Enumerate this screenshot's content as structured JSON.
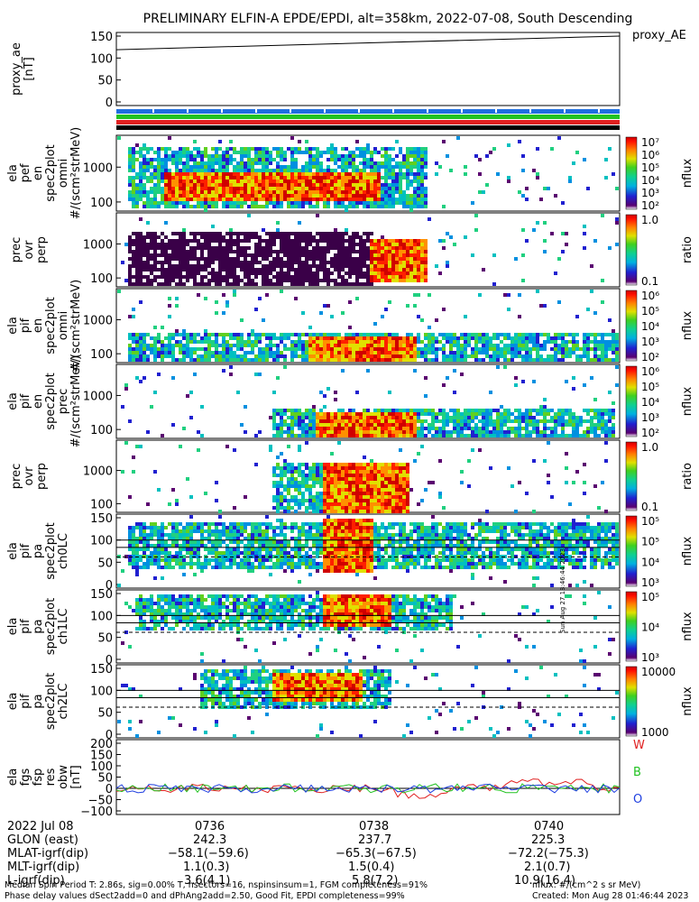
{
  "title": "PRELIMINARY ELFIN-A EPDE/EPDI, alt=358km, 2022-07-08, South Descending",
  "chart_data": [
    {
      "type": "line",
      "panel": "proxy_ae",
      "ylabel": [
        "proxy_ae",
        "[nT]"
      ],
      "legend": "proxy_AE",
      "ylim": [
        0,
        150
      ],
      "yticks": [
        "150",
        "100",
        "50",
        "0"
      ],
      "x": [
        0,
        1
      ],
      "series": [
        {
          "values": [
            119,
            150
          ]
        }
      ],
      "color": "#000000"
    },
    {
      "type": "bar",
      "panel": "status_bars",
      "colors": [
        "#1f6fe0",
        "#22c222",
        "#e02020",
        "#000000"
      ]
    },
    {
      "type": "heatmap",
      "panel": "ela_pef_en_omni",
      "ylabel": [
        "ela",
        "pef",
        "en",
        "spec2plot",
        "omni",
        "#/(scm²strMeV)"
      ],
      "yticks": [
        "1000",
        "100"
      ],
      "zlabel": "nflux",
      "zticks": [
        "10⁷",
        "10⁶",
        "10⁵",
        "10⁴",
        "10³",
        "10²"
      ],
      "colorbar": "rainbow"
    },
    {
      "type": "heatmap",
      "panel": "ela_pef_prec_ovr_perp",
      "ylabel": [
        "prec",
        "ovr",
        "perp"
      ],
      "yticks": [
        "1000",
        "100"
      ],
      "zlabel": "ratio",
      "zticks": [
        "1.0",
        "0.1"
      ],
      "colorbar": "rainbow"
    },
    {
      "type": "heatmap",
      "panel": "ela_pif_en_omni",
      "ylabel": [
        "ela",
        "pif",
        "en",
        "spec2plot",
        "omni",
        "#/(scm²strMeV)"
      ],
      "yticks": [
        "1000",
        "100"
      ],
      "zlabel": "nflux",
      "zticks": [
        "10⁶",
        "10⁵",
        "10⁴",
        "10³",
        "10²"
      ],
      "colorbar": "rainbow"
    },
    {
      "type": "heatmap",
      "panel": "ela_pif_en_prec",
      "ylabel": [
        "ela",
        "pif",
        "en",
        "spec2plot",
        "prec",
        "#/(scm²strMeV)"
      ],
      "yticks": [
        "1000",
        "100"
      ],
      "zlabel": "nflux",
      "zticks": [
        "10⁶",
        "10⁵",
        "10⁴",
        "10³",
        "10²"
      ],
      "colorbar": "rainbow"
    },
    {
      "type": "heatmap",
      "panel": "ela_pif_prec_ovr_perp",
      "ylabel": [
        "prec",
        "ovr",
        "perp"
      ],
      "yticks": [
        "1000",
        "100"
      ],
      "zlabel": "ratio",
      "zticks": [
        "1.0",
        "0.1"
      ],
      "colorbar": "rainbow"
    },
    {
      "type": "heatmap",
      "panel": "ela_pif_pa_ch0LC",
      "ylabel": [
        "ela",
        "pif",
        "pa",
        "spec2plot",
        "ch0LC"
      ],
      "yticks": [
        "150",
        "100",
        "50",
        "0"
      ],
      "zlabel": "nflux",
      "zticks": [
        "10⁵",
        "10⁵",
        "10⁴",
        "10³"
      ],
      "colorbar": "rainbow"
    },
    {
      "type": "heatmap",
      "panel": "ela_pif_pa_ch1LC",
      "ylabel": [
        "ela",
        "pif",
        "pa",
        "spec2plot",
        "ch1LC"
      ],
      "yticks": [
        "150",
        "100",
        "50",
        "0"
      ],
      "zlabel": "nflux",
      "zticks": [
        "10⁵",
        "10⁴",
        "10³"
      ],
      "colorbar": "rainbow"
    },
    {
      "type": "heatmap",
      "panel": "ela_pif_pa_ch2LC",
      "ylabel": [
        "ela",
        "pif",
        "pa",
        "spec2plot",
        "ch2LC"
      ],
      "yticks": [
        "150",
        "100",
        "50",
        "0"
      ],
      "zlabel": "nflux",
      "zticks": [
        "10000",
        "1000"
      ],
      "colorbar": "rainbow"
    },
    {
      "type": "line",
      "panel": "ela_fgs_fsp_res_obw",
      "ylabel": [
        "ela",
        "fgs",
        "fsp",
        "res",
        "obw",
        "[nT]"
      ],
      "ylim": [
        -100,
        200
      ],
      "yticks": [
        "200",
        "150",
        "100",
        "50",
        "0",
        "−50",
        "−100"
      ],
      "series": [
        {
          "name": "W",
          "color": "#e02020"
        },
        {
          "name": "B",
          "color": "#22c222"
        },
        {
          "name": "O",
          "color": "#1f3fe0"
        }
      ]
    }
  ],
  "xaxis": {
    "rows": [
      {
        "label": "2022 Jul 08",
        "values": [
          "0736",
          "0738",
          "0740"
        ]
      },
      {
        "label": "GLON (east)",
        "values": [
          "242.3",
          "237.7",
          "225.3"
        ]
      },
      {
        "label": "MLAT-igrf(dip)",
        "values": [
          "−58.1(−59.6)",
          "−65.3(−67.5)",
          "−72.2(−75.3)"
        ]
      },
      {
        "label": "MLT-igrf(dip)",
        "values": [
          "1.1(0.3)",
          "1.5(0.4)",
          "2.1(0.7)"
        ]
      },
      {
        "label": "L-igrf(dip)",
        "values": [
          "3.6(4.1)",
          "5.8(7.2)",
          "10.9(16.4)"
        ]
      }
    ]
  },
  "footer": {
    "left1": "Median Spin Period T: 2.86s, sig=0.00% T, nsectors=16, nspinsinsum=1, FGM completeness=91%",
    "left2": "Phase delay values dSect2add=0 and dPhAng2add=2.50, Good Fit, EPDI completeness=99%",
    "right1": "nflux: #/(cm^2 s sr MeV)",
    "right2": "Created: Mon Aug 28 01:46:44 2023",
    "vertical": "Sun Aug 27 18:46:44 2023"
  }
}
